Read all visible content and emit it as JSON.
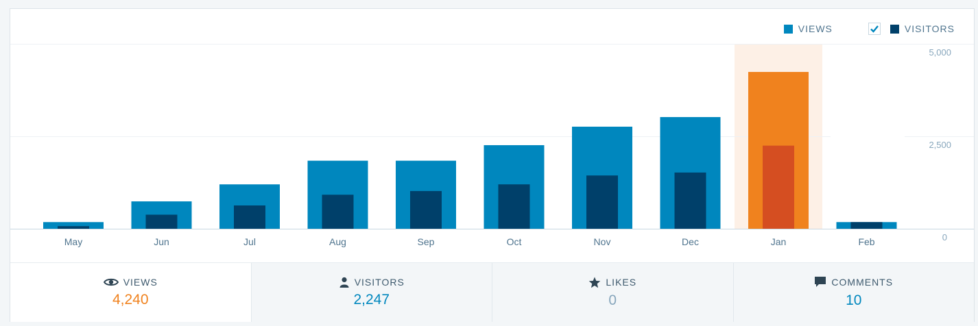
{
  "legend": {
    "views": {
      "label": "VIEWS",
      "color": "#0087be"
    },
    "visitors": {
      "label": "VISITORS",
      "color": "#00406a",
      "checked": true
    }
  },
  "chart_data": {
    "type": "bar",
    "categories": [
      "May",
      "Jun",
      "Jul",
      "Aug",
      "Sep",
      "Oct",
      "Nov",
      "Dec",
      "Jan",
      "Feb"
    ],
    "series": [
      {
        "name": "Views",
        "values": [
          180,
          740,
          1200,
          1840,
          1840,
          2260,
          2760,
          3020,
          4240,
          180
        ],
        "color": "#0087be"
      },
      {
        "name": "Visitors",
        "values": [
          70,
          380,
          630,
          920,
          1020,
          1200,
          1440,
          1520,
          2247,
          180
        ],
        "color": "#00406a"
      }
    ],
    "yticks": [
      "5,000",
      "2,500",
      "0"
    ],
    "ylim": [
      0,
      5000
    ],
    "highlight": {
      "index": 8,
      "views_color": "#f0821e",
      "visitors_color": "#d54e21",
      "band_color": "#fdf0e6"
    },
    "grid": true
  },
  "tabs": [
    {
      "label": "VIEWS",
      "value": "4,240",
      "value_color": "#f0821e",
      "icon": "eye-icon",
      "active": true
    },
    {
      "label": "VISITORS",
      "value": "2,247",
      "value_color": "#0087be",
      "icon": "person-icon",
      "active": false
    },
    {
      "label": "LIKES",
      "value": "0",
      "value_color": "#87a6bc",
      "icon": "star-icon",
      "active": false
    },
    {
      "label": "COMMENTS",
      "value": "10",
      "value_color": "#0087be",
      "icon": "comment-icon",
      "active": false
    }
  ]
}
